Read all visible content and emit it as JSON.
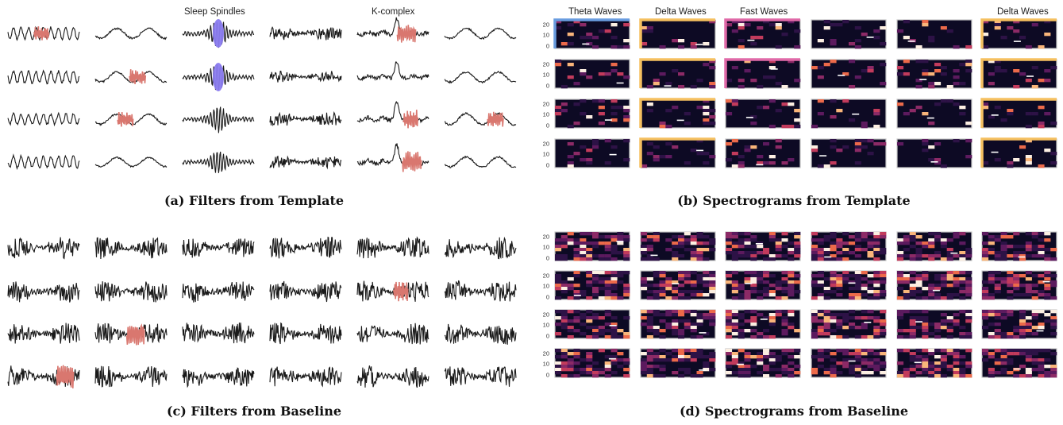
{
  "figure": {
    "captions": {
      "a": "(a) Filters from Template",
      "b": "(b) Spectrograms from Template",
      "c": "(c) Filters from Baseline",
      "d": "(d) Spectrograms from Baseline"
    },
    "filter_column_labels": [
      "",
      "",
      "Sleep Spindles",
      "",
      "K-complex",
      ""
    ],
    "spectrogram_column_labels": [
      "Theta Waves",
      "Delta Waves",
      "Fast Waves",
      "",
      "",
      "Delta Waves"
    ],
    "spectrogram_y_ticks": [
      "20",
      "10",
      "0"
    ],
    "colors": {
      "trace": "#1a1a1a",
      "highlight_red": "#d9776f",
      "highlight_purple": "#8b7cf0",
      "theta_border": "#6a9de0",
      "delta_border": "#f5c060",
      "fast_border": "#e06aa8",
      "spec_bg": "#0d0a24",
      "spec_hot": [
        "#2d1246",
        "#5c1a5e",
        "#8c2a66",
        "#c23b5c",
        "#ec6a4a",
        "#f9b57a",
        "#fcefe2"
      ]
    },
    "template_border_grid": [
      [
        "theta",
        "delta",
        "fast",
        "",
        "",
        "delta"
      ],
      [
        "",
        "delta",
        "fast",
        "",
        "",
        "delta"
      ],
      [
        "",
        "delta",
        "",
        "",
        "",
        "delta"
      ],
      [
        "",
        "delta",
        "",
        "",
        "",
        "delta"
      ]
    ],
    "template_filter_highlights": [
      [
        "red",
        "",
        "purple",
        "",
        "red",
        ""
      ],
      [
        "",
        "red",
        "purple",
        "",
        "",
        ""
      ],
      [
        "",
        "red",
        "",
        "black",
        "red",
        "red"
      ],
      [
        "",
        "",
        "",
        "",
        "red",
        ""
      ]
    ],
    "baseline_filter_highlights": [
      [
        "",
        "",
        "",
        "",
        "",
        ""
      ],
      [
        "",
        "",
        "",
        "",
        "red",
        ""
      ],
      [
        "",
        "red",
        "",
        "",
        "",
        ""
      ],
      [
        "red",
        "",
        "",
        "",
        "",
        ""
      ]
    ]
  }
}
